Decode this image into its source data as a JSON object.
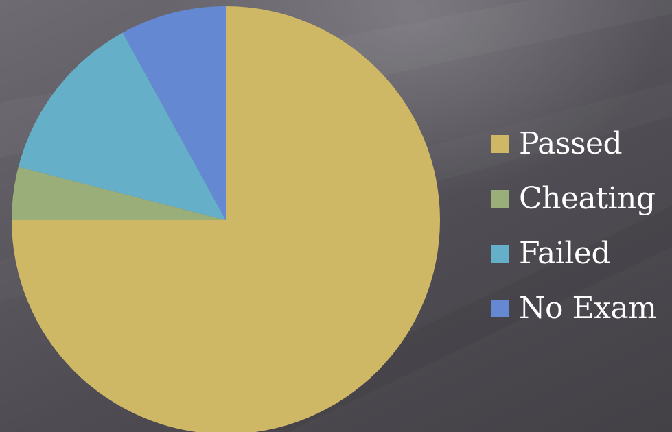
{
  "chart_data": {
    "type": "pie",
    "categories": [
      "Passed",
      "Cheating",
      "Failed",
      "No Exam"
    ],
    "values": [
      75,
      4,
      13,
      8
    ],
    "colors": [
      "#cfb865",
      "#9aae7a",
      "#66afc8",
      "#6588d2"
    ],
    "start_angle_deg": 0,
    "direction": "clockwise",
    "legend_position": "right"
  },
  "background": {
    "colors": [
      "#6e6c72",
      "#434146"
    ]
  }
}
